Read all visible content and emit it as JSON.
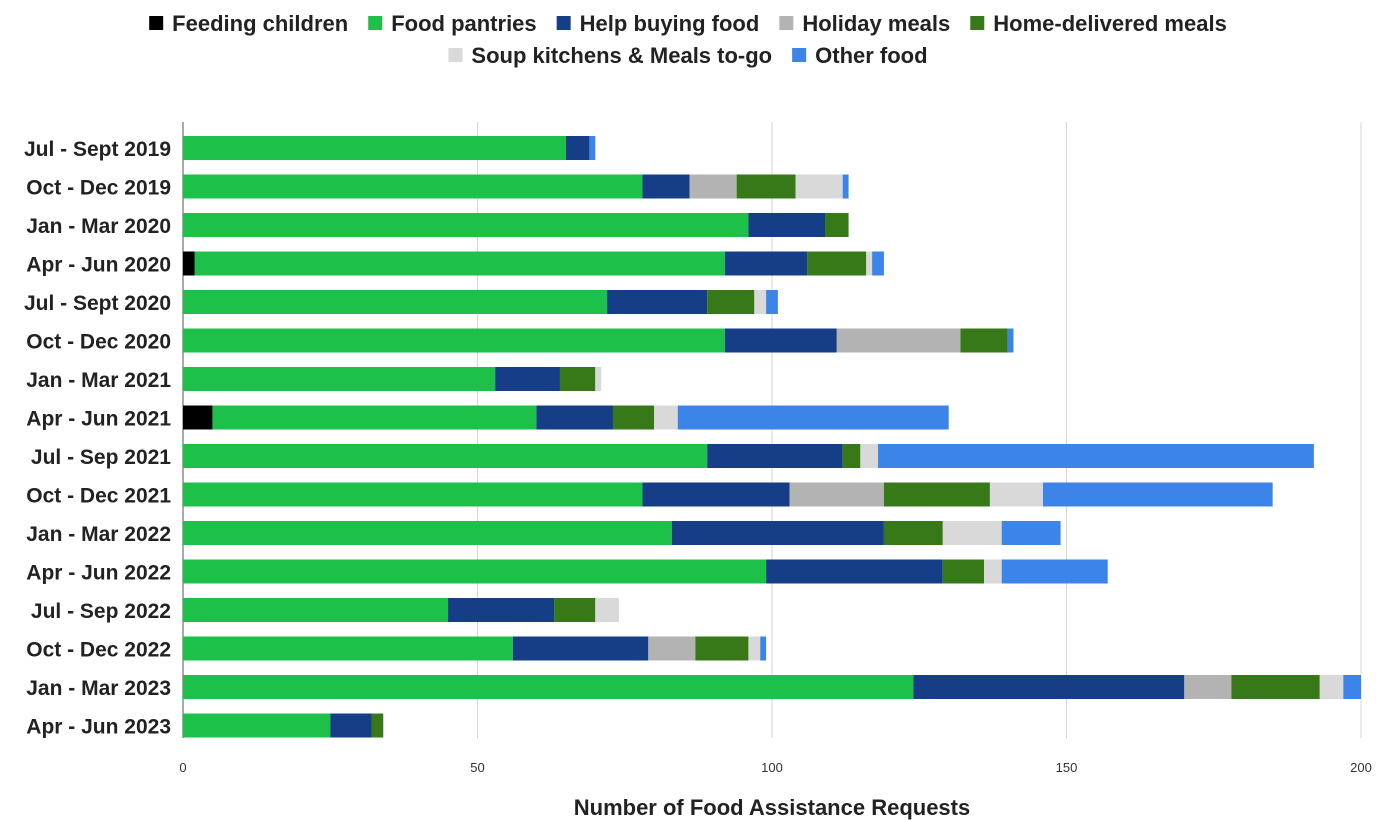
{
  "chart_data": {
    "type": "bar",
    "orientation": "horizontal",
    "stacked": true,
    "title": "",
    "xlabel": "Number of Food Assistance Requests",
    "ylabel": "",
    "xlim": [
      0,
      200
    ],
    "x_ticks": [
      0,
      50,
      100,
      150,
      200
    ],
    "grid": "vertical",
    "legend_position": "top",
    "categories": [
      "Jul - Sept 2019",
      "Oct - Dec 2019",
      "Jan - Mar 2020",
      "Apr - Jun 2020",
      "Jul - Sept 2020",
      "Oct - Dec 2020",
      "Jan - Mar 2021",
      "Apr - Jun 2021",
      "Jul - Sep 2021",
      "Oct - Dec 2021",
      "Jan - Mar 2022",
      "Apr - Jun 2022",
      "Jul - Sep 2022",
      "Oct - Dec 2022",
      "Jan - Mar 2023",
      "Apr - Jun 2023"
    ],
    "series": [
      {
        "name": "Feeding children",
        "color": "#000000",
        "values": [
          0,
          0,
          0,
          2,
          0,
          0,
          0,
          5,
          0,
          0,
          0,
          0,
          0,
          0,
          0,
          0
        ]
      },
      {
        "name": "Food pantries",
        "color": "#1dc048",
        "values": [
          65,
          78,
          96,
          90,
          72,
          92,
          53,
          55,
          89,
          78,
          83,
          99,
          45,
          56,
          124,
          25
        ]
      },
      {
        "name": "Help buying food",
        "color": "#163e87",
        "values": [
          4,
          8,
          13,
          14,
          17,
          19,
          11,
          13,
          23,
          25,
          36,
          30,
          18,
          23,
          46,
          7
        ]
      },
      {
        "name": "Holiday meals",
        "color": "#b3b3b3",
        "values": [
          0,
          8,
          0,
          0,
          0,
          21,
          0,
          0,
          0,
          16,
          0,
          0,
          0,
          8,
          8,
          0
        ]
      },
      {
        "name": "Home-delivered meals",
        "color": "#377918",
        "values": [
          0,
          10,
          4,
          10,
          8,
          8,
          6,
          7,
          3,
          18,
          10,
          7,
          7,
          9,
          15,
          2
        ]
      },
      {
        "name": "Soup kitchens & Meals to-go",
        "color": "#d9d9d9",
        "values": [
          0,
          8,
          0,
          1,
          2,
          0,
          1,
          4,
          3,
          9,
          10,
          3,
          4,
          2,
          4,
          0
        ]
      },
      {
        "name": "Other food",
        "color": "#3d84e8",
        "values": [
          1,
          1,
          0,
          2,
          2,
          1,
          0,
          46,
          74,
          39,
          10,
          18,
          0,
          1,
          3,
          0
        ]
      }
    ]
  }
}
